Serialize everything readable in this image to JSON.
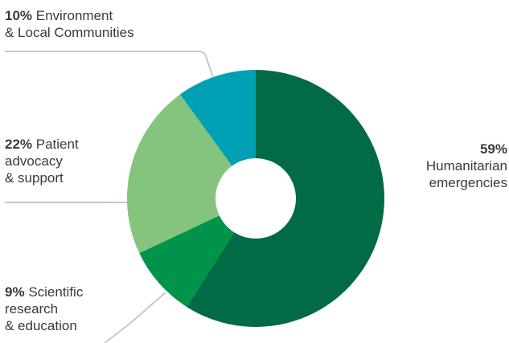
{
  "chart_data": {
    "type": "pie",
    "donut": true,
    "title": "",
    "slices": [
      {
        "label": "Humanitarian emergencies",
        "pct_text": "59%",
        "value": 59,
        "color": "#006b45"
      },
      {
        "label": "Scientific research & education",
        "pct_text": "9%",
        "value": 9,
        "color": "#00944a"
      },
      {
        "label": "Patient advocacy & support",
        "pct_text": "22%",
        "value": 22,
        "color": "#84c47e"
      },
      {
        "label": "Environment & Local Communities",
        "pct_text": "10%",
        "value": 10,
        "color": "#00a0b4"
      }
    ],
    "annotations": {
      "env": {
        "pct": "10%",
        "line1": "Environment",
        "line2": "& Local Communities"
      },
      "patient": {
        "pct": "22%",
        "line1": "Patient",
        "line2": "advocacy",
        "line3": "& support"
      },
      "sci": {
        "pct": "9%",
        "line1": "Scientific",
        "line2": "research",
        "line3": "& education"
      },
      "hum": {
        "pct": "59%",
        "line1": "Humanitarian",
        "line2": "emergencies"
      }
    },
    "leader_color": "#c8c8c8"
  }
}
